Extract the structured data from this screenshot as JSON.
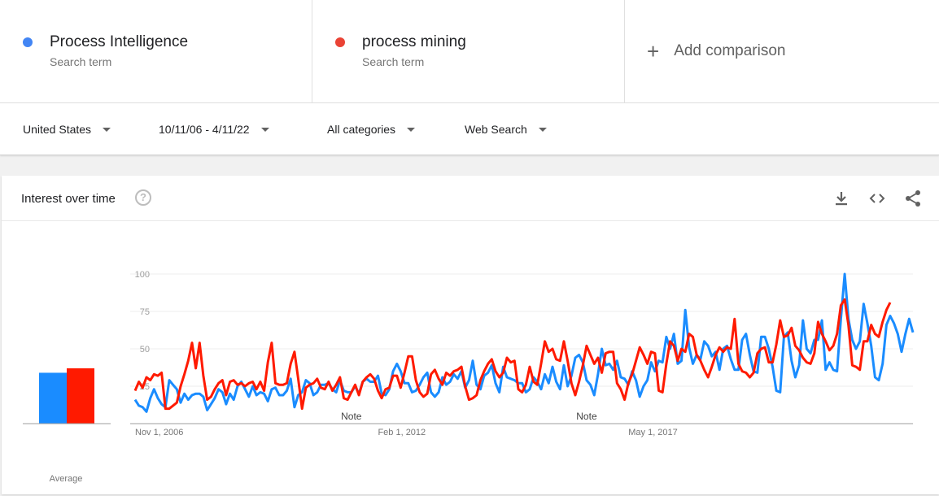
{
  "terms": [
    {
      "name": "Process Intelligence",
      "sub": "Search term",
      "color": "#4285f4"
    },
    {
      "name": "process mining",
      "sub": "Search term",
      "color": "#ea4335"
    }
  ],
  "add_comparison": "Add comparison",
  "filters": {
    "region": "United States",
    "range": "10/11/06 - 4/11/22",
    "category": "All categories",
    "search_type": "Web Search"
  },
  "card": {
    "title": "Interest over time",
    "help_icon": "help-circle-icon",
    "download_icon": "download-icon",
    "embed_icon": "code-icon",
    "share_icon": "share-icon"
  },
  "chart_data": {
    "type": "line",
    "ylim": [
      0,
      100
    ],
    "y_ticks": [
      "100",
      "75",
      "50",
      "25"
    ],
    "x_ticks": [
      "Nov 1, 2006",
      "Feb 1, 2012",
      "May 1, 2017"
    ],
    "notes": [
      "Note",
      "Note"
    ],
    "average_label": "Average",
    "averages": [
      {
        "name": "Process Intelligence",
        "value": 34,
        "color": "#1a8cff"
      },
      {
        "name": "process mining",
        "value": 37,
        "color": "#ff1a00"
      }
    ],
    "series": [
      {
        "name": "Process Intelligence",
        "color": "#1a8cff",
        "values": [
          16,
          12,
          11,
          8,
          17,
          23,
          17,
          13,
          11,
          29,
          26,
          23,
          14,
          20,
          16,
          19,
          20,
          20,
          18,
          9,
          13,
          17,
          23,
          21,
          13,
          20,
          16,
          25,
          28,
          23,
          18,
          25,
          19,
          21,
          20,
          15,
          23,
          24,
          19,
          19,
          22,
          30,
          11,
          19,
          21,
          29,
          27,
          19,
          21,
          26,
          26,
          27,
          23,
          21,
          29,
          22,
          21,
          21,
          25,
          20,
          28,
          30,
          28,
          28,
          32,
          20,
          19,
          23,
          35,
          40,
          35,
          27,
          27,
          21,
          22,
          26,
          31,
          34,
          21,
          18,
          21,
          31,
          26,
          28,
          33,
          30,
          35,
          24,
          29,
          42,
          26,
          23,
          32,
          34,
          39,
          27,
          21,
          38,
          31,
          30,
          29,
          27,
          27,
          21,
          23,
          31,
          28,
          23,
          33,
          27,
          38,
          28,
          23,
          39,
          25,
          32,
          44,
          46,
          41,
          29,
          26,
          19,
          33,
          50,
          39,
          40,
          36,
          42,
          31,
          30,
          26,
          35,
          29,
          18,
          25,
          29,
          41,
          35,
          42,
          41,
          58,
          50,
          60,
          40,
          42,
          76,
          51,
          40,
          46,
          43,
          55,
          52,
          45,
          48,
          36,
          50,
          52,
          43,
          36,
          36,
          56,
          60,
          46,
          35,
          34,
          58,
          58,
          50,
          38,
          22,
          21,
          58,
          61,
          42,
          31,
          39,
          69,
          50,
          47,
          56,
          56,
          69,
          36,
          41,
          36,
          35,
          70,
          100,
          70,
          56,
          50,
          55,
          80,
          67,
          52,
          31,
          29,
          40,
          66,
          72,
          67,
          60,
          48,
          60,
          70,
          61
        ]
      },
      {
        "name": "process mining",
        "color": "#ff1a00",
        "values": [
          22,
          28,
          24,
          31,
          29,
          33,
          32,
          34,
          10,
          10,
          12,
          14,
          25,
          33,
          42,
          54,
          37,
          54,
          32,
          16,
          18,
          23,
          27,
          29,
          19,
          28,
          29,
          26,
          27,
          25,
          27,
          28,
          23,
          28,
          22,
          41,
          54,
          27,
          26,
          26,
          27,
          40,
          48,
          30,
          10,
          24,
          26,
          27,
          30,
          24,
          23,
          28,
          22,
          26,
          31,
          17,
          16,
          21,
          26,
          19,
          28,
          31,
          33,
          30,
          22,
          17,
          23,
          24,
          32,
          32,
          24,
          34,
          45,
          45,
          29,
          21,
          18,
          20,
          33,
          36,
          30,
          26,
          34,
          32,
          35,
          36,
          38,
          25,
          16,
          17,
          19,
          29,
          35,
          40,
          43,
          35,
          31,
          34,
          44,
          41,
          42,
          23,
          21,
          26,
          38,
          28,
          26,
          40,
          55,
          48,
          50,
          43,
          42,
          55,
          42,
          27,
          19,
          28,
          39,
          52,
          46,
          40,
          44,
          34,
          47,
          48,
          48,
          27,
          23,
          16,
          27,
          33,
          42,
          51,
          46,
          40,
          48,
          47,
          22,
          21,
          40,
          55,
          52,
          42,
          50,
          48,
          60,
          58,
          46,
          42,
          36,
          31,
          38,
          46,
          51,
          48,
          51,
          50,
          70,
          40,
          35,
          34,
          31,
          34,
          47,
          50,
          51,
          41,
          41,
          53,
          69,
          58,
          59,
          64,
          52,
          49,
          44,
          41,
          40,
          47,
          68,
          60,
          55,
          49,
          52,
          60,
          79,
          83,
          66,
          39,
          38,
          36,
          55,
          55,
          66,
          60,
          58,
          68,
          76,
          81
        ]
      }
    ]
  }
}
